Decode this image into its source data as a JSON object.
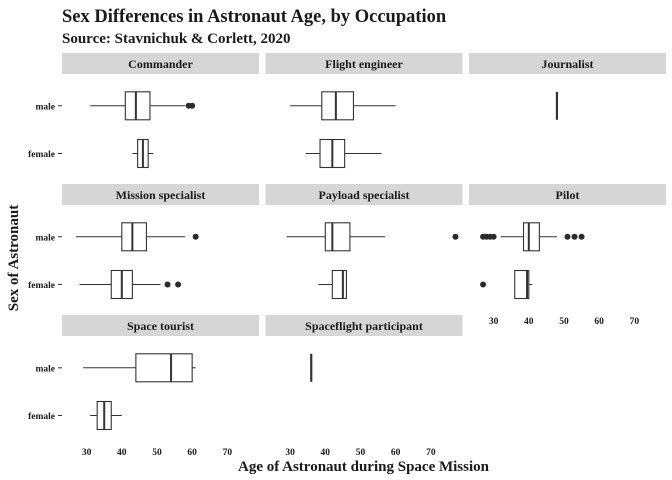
{
  "chart_data": {
    "type": "boxplot",
    "title": "Sex Differences in Astronaut Age, by Occupation",
    "subtitle": "Source: Stavnichuk & Corlett, 2020",
    "xlabel": "Age of Astronaut during Space Mission",
    "ylabel": "Sex of Astronaut",
    "xlim": [
      23,
      79
    ],
    "xticks": [
      30,
      40,
      50,
      60,
      70
    ],
    "categories": [
      "male",
      "female"
    ],
    "panels": [
      {
        "name": "Commander",
        "boxes": {
          "male": {
            "min": 31,
            "q1": 41,
            "median": 44,
            "q3": 48,
            "max": 58,
            "outliers": [
              59,
              60
            ]
          },
          "female": {
            "min": 43,
            "q1": 44.5,
            "median": 46,
            "q3": 47.5,
            "max": 49,
            "outliers": []
          }
        }
      },
      {
        "name": "Flight engineer",
        "boxes": {
          "male": {
            "min": 30,
            "q1": 39,
            "median": 43,
            "q3": 48,
            "max": 60,
            "outliers": []
          },
          "female": {
            "min": 34.5,
            "q1": 38.5,
            "median": 42,
            "q3": 45.5,
            "max": 56,
            "outliers": []
          }
        }
      },
      {
        "name": "Journalist",
        "boxes": {
          "male": {
            "min": 48,
            "q1": 48,
            "median": 48,
            "q3": 48,
            "max": 48,
            "outliers": []
          }
        }
      },
      {
        "name": "Mission specialist",
        "boxes": {
          "male": {
            "min": 27,
            "q1": 40,
            "median": 43,
            "q3": 47,
            "max": 58,
            "outliers": [
              61
            ]
          },
          "female": {
            "min": 28,
            "q1": 37,
            "median": 40,
            "q3": 43,
            "max": 51,
            "outliers": [
              53,
              56
            ]
          }
        }
      },
      {
        "name": "Payload specialist",
        "boxes": {
          "male": {
            "min": 29,
            "q1": 40,
            "median": 42,
            "q3": 47,
            "max": 57,
            "outliers": [
              77
            ]
          },
          "female": {
            "min": 38,
            "q1": 42,
            "median": 45,
            "q3": 46,
            "max": 46,
            "outliers": []
          }
        }
      },
      {
        "name": "Pilot",
        "boxes": {
          "male": {
            "min": 32,
            "q1": 38.5,
            "median": 40,
            "q3": 43,
            "max": 48,
            "outliers": [
              27,
              28,
              29,
              30,
              51,
              53,
              55
            ]
          },
          "female": {
            "min": 36,
            "q1": 36,
            "median": 39.5,
            "q3": 40,
            "max": 41,
            "outliers": [
              27
            ]
          }
        }
      },
      {
        "name": "Space tourist",
        "boxes": {
          "male": {
            "min": 29,
            "q1": 44,
            "median": 54,
            "q3": 60,
            "max": 61,
            "outliers": []
          },
          "female": {
            "min": 31,
            "q1": 33,
            "median": 35,
            "q3": 37,
            "max": 40,
            "outliers": []
          }
        }
      },
      {
        "name": "Spaceflight participant",
        "boxes": {
          "male": {
            "min": 36,
            "q1": 36,
            "median": 36,
            "q3": 36,
            "max": 36,
            "outliers": []
          }
        }
      }
    ]
  }
}
